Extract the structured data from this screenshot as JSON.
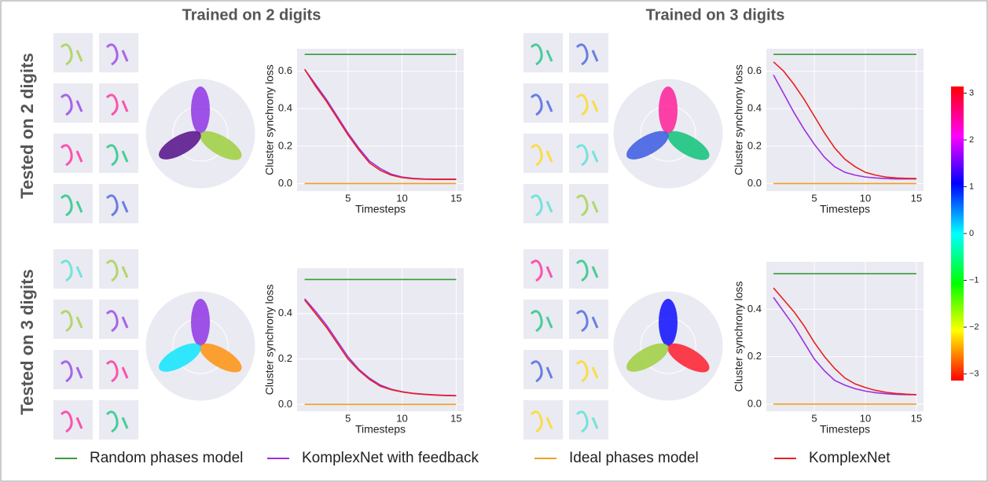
{
  "header": {
    "columns": [
      "Trained on 2 digits",
      "Trained on 3 digits"
    ],
    "rows": [
      "Tested on 2 digits",
      "Tested on 3 digits"
    ]
  },
  "chart_data": [
    {
      "type": "line",
      "xlabel": "Timesteps",
      "ylabel": "Cluster synchrony loss",
      "x": [
        1,
        2,
        3,
        4,
        5,
        6,
        7,
        8,
        9,
        10,
        11,
        12,
        13,
        14,
        15
      ],
      "xlim": [
        0.3,
        15.7
      ],
      "xticks": [
        5,
        10,
        15
      ],
      "ylim": [
        -0.04,
        0.72
      ],
      "yticks": [
        {
          "value": 0,
          "label": "0.0"
        },
        0.2,
        0.4,
        0.6
      ],
      "grid": true,
      "series": [
        {
          "name": "Random phases model",
          "color": "#3a9a3a",
          "values": [
            0.69,
            0.69,
            0.69,
            0.69,
            0.69,
            0.69,
            0.69,
            0.69,
            0.69,
            0.69,
            0.69,
            0.69,
            0.69,
            0.69,
            0.69
          ]
        },
        {
          "name": "KomplexNet with feedback",
          "color": "#9b30e0",
          "values": [
            0.61,
            0.53,
            0.45,
            0.36,
            0.27,
            0.19,
            0.12,
            0.08,
            0.05,
            0.035,
            0.028,
            0.025,
            0.024,
            0.024,
            0.024
          ]
        },
        {
          "name": "Ideal phases model",
          "color": "#f0a020",
          "values": [
            0,
            0,
            0,
            0,
            0,
            0,
            0,
            0,
            0,
            0,
            0,
            0,
            0,
            0,
            0
          ]
        },
        {
          "name": "KomplexNet",
          "color": "#e82020",
          "values": [
            0.61,
            0.52,
            0.44,
            0.35,
            0.26,
            0.18,
            0.11,
            0.07,
            0.045,
            0.032,
            0.026,
            0.023,
            0.022,
            0.022,
            0.022
          ]
        }
      ]
    },
    {
      "type": "line",
      "xlabel": "Timesteps",
      "ylabel": "Cluster synchrony loss",
      "x": [
        1,
        2,
        3,
        4,
        5,
        6,
        7,
        8,
        9,
        10,
        11,
        12,
        13,
        14,
        15
      ],
      "xlim": [
        0.3,
        15.7
      ],
      "xticks": [
        5,
        10,
        15
      ],
      "ylim": [
        -0.04,
        0.72
      ],
      "yticks": [
        {
          "value": 0,
          "label": "0.0"
        },
        0.2,
        0.4,
        0.6
      ],
      "grid": true,
      "series": [
        {
          "name": "Random phases model",
          "color": "#3a9a3a",
          "values": [
            0.69,
            0.69,
            0.69,
            0.69,
            0.69,
            0.69,
            0.69,
            0.69,
            0.69,
            0.69,
            0.69,
            0.69,
            0.69,
            0.69,
            0.69
          ]
        },
        {
          "name": "KomplexNet with feedback",
          "color": "#9b30e0",
          "values": [
            0.58,
            0.48,
            0.38,
            0.29,
            0.21,
            0.14,
            0.09,
            0.06,
            0.045,
            0.035,
            0.03,
            0.027,
            0.025,
            0.025,
            0.025
          ]
        },
        {
          "name": "Ideal phases model",
          "color": "#f0a020",
          "values": [
            0,
            0,
            0,
            0,
            0,
            0,
            0,
            0,
            0,
            0,
            0,
            0,
            0,
            0,
            0
          ]
        },
        {
          "name": "KomplexNet",
          "color": "#e82020",
          "values": [
            0.65,
            0.6,
            0.53,
            0.45,
            0.36,
            0.27,
            0.19,
            0.13,
            0.09,
            0.06,
            0.045,
            0.035,
            0.03,
            0.028,
            0.027
          ]
        }
      ]
    },
    {
      "type": "line",
      "xlabel": "Timesteps",
      "ylabel": "Cluster synchrony loss",
      "x": [
        1,
        2,
        3,
        4,
        5,
        6,
        7,
        8,
        9,
        10,
        11,
        12,
        13,
        14,
        15
      ],
      "xlim": [
        0.3,
        15.7
      ],
      "xticks": [
        5,
        10,
        15
      ],
      "ylim": [
        -0.03,
        0.6
      ],
      "yticks": [
        {
          "value": 0,
          "label": "0.0"
        },
        0.2,
        0.4
      ],
      "grid": true,
      "series": [
        {
          "name": "Random phases model",
          "color": "#3a9a3a",
          "values": [
            0.55,
            0.55,
            0.55,
            0.55,
            0.55,
            0.55,
            0.55,
            0.55,
            0.55,
            0.55,
            0.55,
            0.55,
            0.55,
            0.55,
            0.55
          ]
        },
        {
          "name": "KomplexNet with feedback",
          "color": "#9b30e0",
          "values": [
            0.465,
            0.41,
            0.35,
            0.28,
            0.21,
            0.155,
            0.115,
            0.085,
            0.067,
            0.056,
            0.049,
            0.045,
            0.042,
            0.04,
            0.039
          ]
        },
        {
          "name": "Ideal phases model",
          "color": "#f0a020",
          "values": [
            0,
            0,
            0,
            0,
            0,
            0,
            0,
            0,
            0,
            0,
            0,
            0,
            0,
            0,
            0
          ]
        },
        {
          "name": "KomplexNet",
          "color": "#e82020",
          "values": [
            0.46,
            0.4,
            0.34,
            0.27,
            0.2,
            0.15,
            0.11,
            0.08,
            0.065,
            0.055,
            0.048,
            0.044,
            0.041,
            0.039,
            0.038
          ]
        }
      ]
    },
    {
      "type": "line",
      "xlabel": "Timesteps",
      "ylabel": "Cluster synchrony loss",
      "x": [
        1,
        2,
        3,
        4,
        5,
        6,
        7,
        8,
        9,
        10,
        11,
        12,
        13,
        14,
        15
      ],
      "xlim": [
        0.3,
        15.7
      ],
      "xticks": [
        5,
        10,
        15
      ],
      "ylim": [
        -0.03,
        0.6
      ],
      "yticks": [
        {
          "value": 0,
          "label": "0.0"
        },
        0.2,
        0.4
      ],
      "grid": true,
      "series": [
        {
          "name": "Random phases model",
          "color": "#3a9a3a",
          "values": [
            0.55,
            0.55,
            0.55,
            0.55,
            0.55,
            0.55,
            0.55,
            0.55,
            0.55,
            0.55,
            0.55,
            0.55,
            0.55,
            0.55,
            0.55
          ]
        },
        {
          "name": "KomplexNet with feedback",
          "color": "#9b30e0",
          "values": [
            0.45,
            0.39,
            0.33,
            0.26,
            0.19,
            0.14,
            0.1,
            0.08,
            0.065,
            0.055,
            0.048,
            0.044,
            0.041,
            0.04,
            0.04
          ]
        },
        {
          "name": "Ideal phases model",
          "color": "#f0a020",
          "values": [
            0,
            0,
            0,
            0,
            0,
            0,
            0,
            0,
            0,
            0,
            0,
            0,
            0,
            0,
            0
          ]
        },
        {
          "name": "KomplexNet",
          "color": "#e82020",
          "values": [
            0.49,
            0.44,
            0.39,
            0.33,
            0.26,
            0.2,
            0.15,
            0.11,
            0.085,
            0.07,
            0.058,
            0.05,
            0.045,
            0.042,
            0.04
          ]
        }
      ]
    }
  ],
  "colorbar": {
    "vlim": [
      -3.1416,
      3.1416
    ],
    "ticks": [
      3,
      2,
      1,
      0,
      {
        "value": -1,
        "label": "−1"
      },
      {
        "value": -2,
        "label": "−2"
      },
      {
        "value": -3,
        "label": "−3"
      }
    ]
  }
}
